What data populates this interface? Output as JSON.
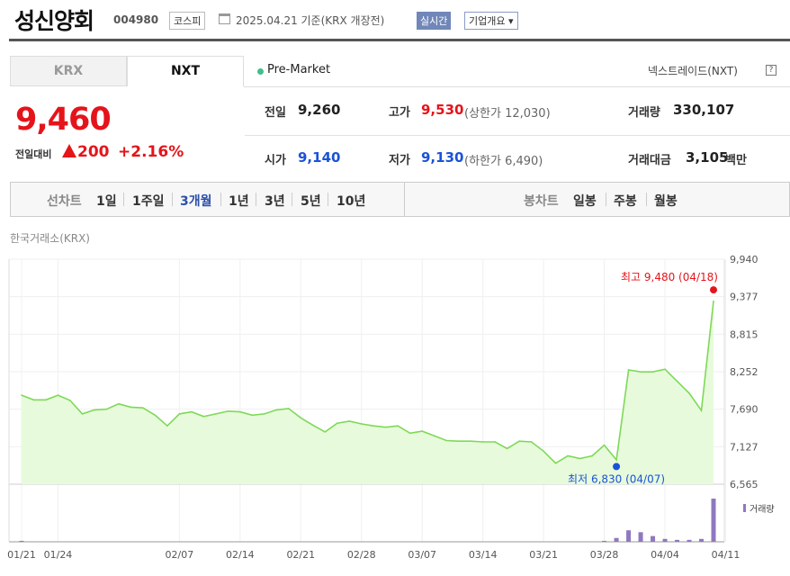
{
  "header": {
    "stock_name": "성신양회",
    "stock_code": "004980",
    "market": "코스피",
    "date_text": "2025.04.21 기준(KRX 개장전)",
    "realtime": "실시간",
    "company_overview": "기업개요 ▾"
  },
  "tabs": {
    "krx": "KRX",
    "nxt": "NXT"
  },
  "premarket": "Pre-Market",
  "nxt_link": "넥스트레이드(NXT)",
  "help": "?",
  "price": {
    "current": "9,460",
    "change_label": "전일대비",
    "change_value": "200",
    "change_pct": "+2.16%"
  },
  "stats": {
    "prev_close_label": "전일",
    "prev_close": "9,260",
    "high_label": "고가",
    "high": "9,530",
    "upper_limit": "(상한가 12,030)",
    "volume_label": "거래량",
    "volume": "330,107",
    "open_label": "시가",
    "open": "9,140",
    "low_label": "저가",
    "low": "9,130",
    "lower_limit": "(하한가 6,490)",
    "trade_value_label": "거래대금",
    "trade_value": "3,105",
    "trade_value_unit": "백만"
  },
  "period_bar": {
    "line_label": "선차트",
    "periods": [
      "1일",
      "1주일",
      "3개월",
      "1년",
      "3년",
      "5년",
      "10년"
    ],
    "active_period": "3개월",
    "candle_label": "봉차트",
    "candles": [
      "일봉",
      "주봉",
      "월봉"
    ]
  },
  "chart_source": "한국거래소(KRX)",
  "chart_data": {
    "type": "area",
    "ylim": [
      6565,
      9940
    ],
    "y_ticks": [
      "9,940",
      "9,377",
      "8,815",
      "8,252",
      "7,690",
      "7,127",
      "6,565"
    ],
    "x_tick_labels": [
      "01/21",
      "01/24",
      "02/07",
      "02/14",
      "02/21",
      "02/28",
      "03/07",
      "03/14",
      "03/21",
      "03/28",
      "04/04",
      "04/11"
    ],
    "x_tick_index": [
      0,
      3,
      13,
      18,
      23,
      28,
      33,
      38,
      43,
      48,
      53,
      58
    ],
    "values": [
      7900,
      7830,
      7830,
      7900,
      7820,
      7620,
      7680,
      7690,
      7770,
      7720,
      7710,
      7600,
      7440,
      7620,
      7650,
      7580,
      7620,
      7660,
      7650,
      7600,
      7620,
      7680,
      7700,
      7560,
      7450,
      7350,
      7480,
      7510,
      7470,
      7440,
      7420,
      7440,
      7330,
      7360,
      7290,
      7220,
      7210,
      7210,
      7200,
      7200,
      7100,
      7210,
      7200,
      7060,
      6880,
      6990,
      6950,
      6990,
      7150,
      6930,
      8280,
      8250,
      8250,
      8290,
      8110,
      7930,
      7670,
      9310
    ],
    "annotations": {
      "high": {
        "label": "최고 9,480 (04/18)",
        "value": 9480,
        "index": 57
      },
      "low": {
        "label": "최저 6,830 (04/07)",
        "value": 6830,
        "index": 49
      }
    },
    "volume_label": "거래량",
    "volume": [
      1,
      0,
      0,
      0,
      0,
      0,
      0,
      0,
      0,
      0,
      0,
      0,
      0,
      0,
      0,
      0,
      0,
      0,
      0,
      0,
      0,
      0,
      0,
      0,
      0,
      0,
      0,
      0,
      0,
      0,
      0,
      0,
      0,
      0,
      0,
      0,
      0,
      0,
      0,
      0,
      0,
      0,
      0,
      0,
      0,
      0,
      0,
      0,
      1,
      4,
      12,
      10,
      6,
      3,
      2,
      2,
      3,
      45
    ],
    "line_color": "#7ed957",
    "fill_color": "#e7fbdc",
    "high_color": "#e5141a",
    "low_color": "#1a53d6",
    "volume_color": "#8f78c0"
  }
}
